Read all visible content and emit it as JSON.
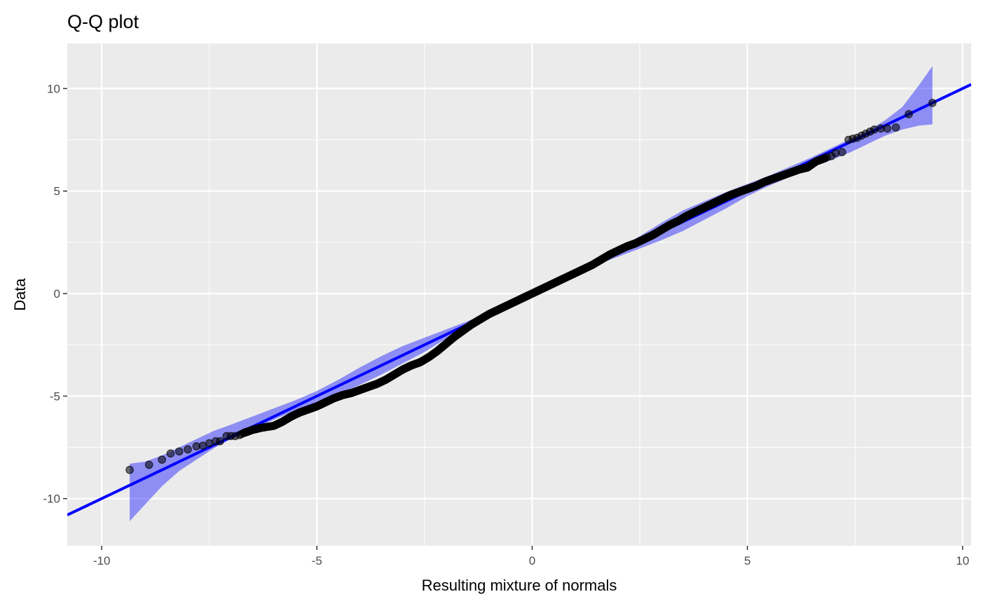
{
  "chart_data": {
    "type": "scatter",
    "title": "Q-Q plot",
    "xlabel": "Resulting mixture of normals",
    "ylabel": "Data",
    "xlim": [
      -10.8,
      10.2
    ],
    "ylim": [
      -12.3,
      12.2
    ],
    "x_ticks": [
      -10,
      -5,
      0,
      5,
      10
    ],
    "x_tick_labels": [
      "-10",
      "-5",
      "0",
      "5",
      "10"
    ],
    "y_ticks": [
      -10,
      -5,
      0,
      5,
      10
    ],
    "y_tick_labels": [
      "-10",
      "-5",
      "0",
      "5",
      "10"
    ],
    "x_minor": [
      -7.5,
      -2.5,
      2.5,
      7.5
    ],
    "y_minor": [
      -7.5,
      -2.5,
      2.5,
      7.5
    ],
    "grid": true,
    "legend": "none",
    "colors": {
      "panel": "#ebebeb",
      "grid": "#ffffff",
      "line": "#0000ff",
      "band": "#0000ff",
      "points": "#000000"
    },
    "reference_line": {
      "slope": 1.0,
      "intercept": 0.0,
      "x_start": -10.8,
      "x_end": 10.2
    },
    "confidence_band": {
      "x": [
        -9.35,
        -9.0,
        -8.6,
        -8.2,
        -7.8,
        -7.4,
        -7.0,
        -6.5,
        -6.0,
        -5.5,
        -5.0,
        -4.5,
        -4.0,
        -3.5,
        -3.0,
        -2.5,
        -2.0,
        -1.5,
        -1.0,
        -0.5,
        0.0,
        0.5,
        1.0,
        1.5,
        2.0,
        2.5,
        3.0,
        3.5,
        4.0,
        4.5,
        5.0,
        5.5,
        6.0,
        6.5,
        7.0,
        7.4,
        7.8,
        8.2,
        8.6,
        9.0,
        9.3
      ],
      "upper": [
        -8.3,
        -8.2,
        -7.9,
        -7.5,
        -7.1,
        -6.7,
        -6.4,
        -6.0,
        -5.6,
        -5.2,
        -4.75,
        -4.2,
        -3.6,
        -3.05,
        -2.55,
        -2.15,
        -1.75,
        -1.35,
        -0.9,
        -0.45,
        0.05,
        0.55,
        1.05,
        1.6,
        2.2,
        2.8,
        3.45,
        4.05,
        4.5,
        4.95,
        5.35,
        5.75,
        6.2,
        6.65,
        7.15,
        7.55,
        7.95,
        8.45,
        9.1,
        10.2,
        11.1
      ],
      "lower": [
        -11.1,
        -10.3,
        -9.4,
        -8.65,
        -8.1,
        -7.55,
        -7.1,
        -6.6,
        -6.15,
        -5.7,
        -5.3,
        -4.9,
        -4.45,
        -3.95,
        -3.4,
        -2.85,
        -2.2,
        -1.6,
        -1.1,
        -0.55,
        -0.05,
        0.45,
        0.95,
        1.4,
        1.8,
        2.2,
        2.6,
        3.05,
        3.6,
        4.15,
        4.75,
        5.25,
        5.7,
        6.15,
        6.55,
        6.9,
        7.3,
        7.7,
        8.0,
        8.2,
        8.25
      ]
    },
    "points": {
      "sparse_lower": [
        [
          -9.35,
          -8.6
        ],
        [
          -8.9,
          -8.35
        ],
        [
          -8.6,
          -8.1
        ],
        [
          -8.4,
          -7.8
        ],
        [
          -8.2,
          -7.7
        ],
        [
          -8.0,
          -7.6
        ],
        [
          -7.8,
          -7.45
        ],
        [
          -7.65,
          -7.42
        ],
        [
          -7.5,
          -7.3
        ],
        [
          -7.35,
          -7.2
        ],
        [
          -7.25,
          -7.2
        ],
        [
          -7.1,
          -6.95
        ],
        [
          -7.0,
          -6.95
        ],
        [
          -6.9,
          -6.95
        ],
        [
          -6.8,
          -6.9
        ],
        [
          -6.75,
          -6.85
        ]
      ],
      "dense_path": [
        [
          -6.7,
          -6.8
        ],
        [
          -6.5,
          -6.65
        ],
        [
          -6.3,
          -6.55
        ],
        [
          -6.0,
          -6.45
        ],
        [
          -5.8,
          -6.25
        ],
        [
          -5.6,
          -6.0
        ],
        [
          -5.4,
          -5.8
        ],
        [
          -5.2,
          -5.65
        ],
        [
          -5.0,
          -5.5
        ],
        [
          -4.8,
          -5.3
        ],
        [
          -4.6,
          -5.1
        ],
        [
          -4.4,
          -4.95
        ],
        [
          -4.2,
          -4.85
        ],
        [
          -4.0,
          -4.7
        ],
        [
          -3.8,
          -4.55
        ],
        [
          -3.6,
          -4.4
        ],
        [
          -3.4,
          -4.2
        ],
        [
          -3.2,
          -3.95
        ],
        [
          -3.0,
          -3.7
        ],
        [
          -2.8,
          -3.5
        ],
        [
          -2.6,
          -3.35
        ],
        [
          -2.4,
          -3.1
        ],
        [
          -2.2,
          -2.8
        ],
        [
          -2.0,
          -2.45
        ],
        [
          -1.8,
          -2.1
        ],
        [
          -1.6,
          -1.8
        ],
        [
          -1.4,
          -1.5
        ],
        [
          -1.2,
          -1.25
        ],
        [
          -1.0,
          -1.0
        ],
        [
          -0.8,
          -0.8
        ],
        [
          -0.6,
          -0.6
        ],
        [
          -0.4,
          -0.4
        ],
        [
          -0.2,
          -0.2
        ],
        [
          0.0,
          0.0
        ],
        [
          0.2,
          0.2
        ],
        [
          0.4,
          0.4
        ],
        [
          0.6,
          0.6
        ],
        [
          0.8,
          0.8
        ],
        [
          1.0,
          1.0
        ],
        [
          1.2,
          1.2
        ],
        [
          1.4,
          1.4
        ],
        [
          1.6,
          1.65
        ],
        [
          1.8,
          1.9
        ],
        [
          2.0,
          2.1
        ],
        [
          2.2,
          2.3
        ],
        [
          2.4,
          2.45
        ],
        [
          2.6,
          2.65
        ],
        [
          2.8,
          2.85
        ],
        [
          3.0,
          3.1
        ],
        [
          3.2,
          3.35
        ],
        [
          3.4,
          3.55
        ],
        [
          3.6,
          3.8
        ],
        [
          3.8,
          4.0
        ],
        [
          4.0,
          4.2
        ],
        [
          4.2,
          4.4
        ],
        [
          4.4,
          4.6
        ],
        [
          4.6,
          4.8
        ],
        [
          4.8,
          4.95
        ],
        [
          5.0,
          5.1
        ],
        [
          5.2,
          5.25
        ],
        [
          5.4,
          5.45
        ],
        [
          5.6,
          5.6
        ],
        [
          5.8,
          5.75
        ],
        [
          6.0,
          5.9
        ],
        [
          6.2,
          6.05
        ],
        [
          6.4,
          6.15
        ],
        [
          6.6,
          6.45
        ],
        [
          6.8,
          6.6
        ]
      ],
      "sparse_upper": [
        [
          6.85,
          6.65
        ],
        [
          6.95,
          6.7
        ],
        [
          7.05,
          6.85
        ],
        [
          7.2,
          6.9
        ],
        [
          7.35,
          7.5
        ],
        [
          7.45,
          7.55
        ],
        [
          7.55,
          7.6
        ],
        [
          7.65,
          7.7
        ],
        [
          7.75,
          7.8
        ],
        [
          7.85,
          7.9
        ],
        [
          7.95,
          8.0
        ],
        [
          8.1,
          8.05
        ],
        [
          8.25,
          8.05
        ],
        [
          8.45,
          8.1
        ],
        [
          8.75,
          8.75
        ],
        [
          9.3,
          9.3
        ]
      ]
    }
  }
}
